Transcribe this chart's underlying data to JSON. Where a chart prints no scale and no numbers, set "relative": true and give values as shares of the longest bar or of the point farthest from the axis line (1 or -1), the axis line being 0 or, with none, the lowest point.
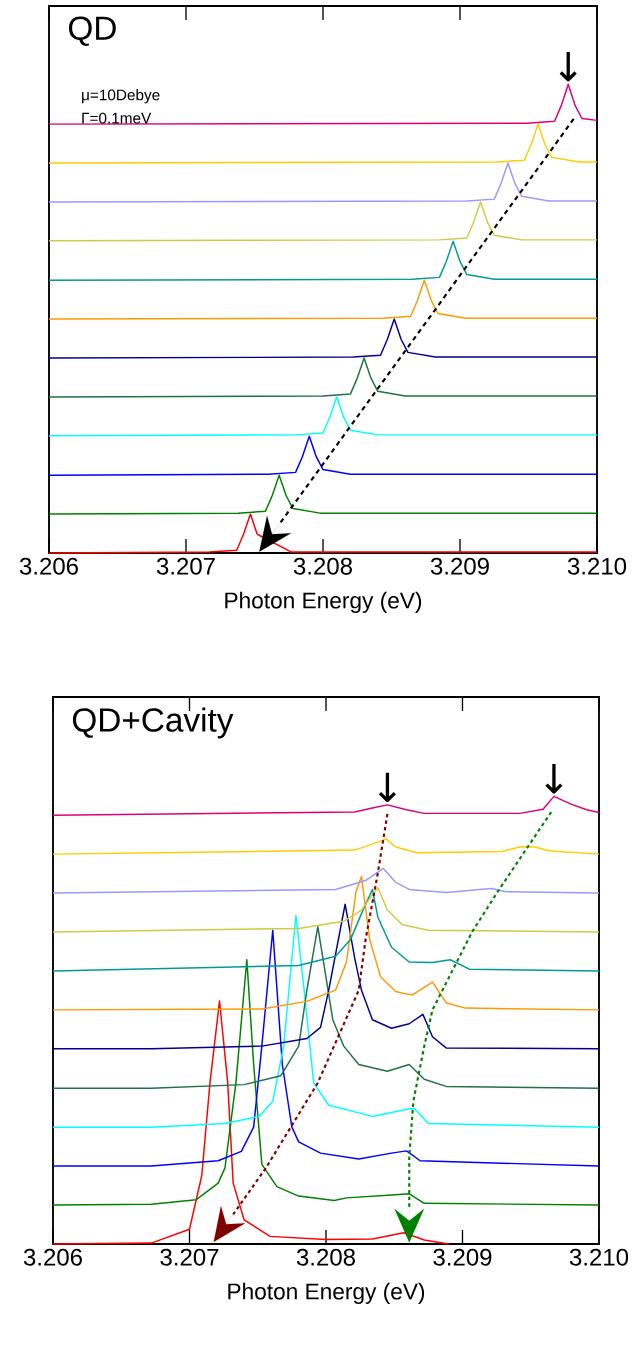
{
  "chart_data": [
    {
      "type": "line",
      "title": "QD",
      "xlabel": "Photon Energy (eV)",
      "relative": true,
      "xlim": [
        3.206,
        3.21
      ],
      "xticks": [
        3.206,
        3.207,
        3.208,
        3.209,
        {
          "value": 3.21,
          "label": "3.210"
        }
      ],
      "annotations": [
        "μ=10Debye",
        "Γ=0.1meV",
        {
          "text": "↓",
          "x": 3.20979,
          "y": 1
        }
      ],
      "series": [
        {
          "color": "#ff0000",
          "x": [
            3.206,
            3.20717,
            3.20737,
            3.20742,
            3.20747,
            3.20752,
            3.20757,
            3.20777,
            3.21
          ],
          "values": [
            0,
            0.002,
            0.006,
            0.04,
            0.083,
            0.04,
            null,
            0.002,
            0.002
          ]
        },
        {
          "color": "#008000",
          "x": [
            3.206,
            3.20738,
            3.20758,
            3.20763,
            3.20768,
            3.20773,
            3.20778,
            3.20798,
            3.21
          ],
          "values": [
            0.083,
            0.085,
            0.089,
            0.123,
            0.166,
            0.123,
            0.095,
            0.085,
            0.085
          ]
        },
        {
          "color": "#0000ff",
          "x": [
            3.206,
            3.2076,
            3.2078,
            3.20785,
            3.2079,
            3.20795,
            3.208,
            3.2082,
            3.21
          ],
          "values": [
            0.166,
            0.168,
            0.172,
            0.206,
            0.249,
            0.206,
            0.178,
            0.168,
            0.168
          ]
        },
        {
          "color": "#00ffff",
          "x": [
            3.206,
            3.2078,
            3.208,
            3.20805,
            3.2081,
            3.20815,
            3.2082,
            3.2084,
            3.21
          ],
          "values": [
            0.25,
            0.252,
            0.256,
            0.29,
            0.333,
            0.29,
            0.262,
            0.252,
            0.252
          ]
        },
        {
          "color": "#207048",
          "x": [
            3.206,
            3.208,
            3.2082,
            3.20825,
            3.2083,
            3.20835,
            3.2084,
            3.2086,
            3.21
          ],
          "values": [
            0.333,
            0.335,
            0.339,
            0.373,
            0.416,
            0.373,
            0.345,
            0.335,
            0.335
          ]
        },
        {
          "color": "#000090",
          "x": [
            3.206,
            3.20822,
            3.20842,
            3.20847,
            3.20852,
            3.20857,
            3.20862,
            3.20882,
            3.21
          ],
          "values": [
            0.416,
            0.418,
            0.422,
            0.456,
            0.499,
            0.456,
            0.428,
            0.418,
            0.418
          ]
        },
        {
          "color": "#ff9900",
          "x": [
            3.206,
            3.20844,
            3.20864,
            3.20869,
            3.20874,
            3.20879,
            3.20884,
            3.20904,
            3.21
          ],
          "values": [
            0.499,
            0.501,
            0.505,
            0.539,
            0.582,
            0.539,
            0.511,
            0.501,
            0.501
          ]
        },
        {
          "color": "#009999",
          "x": [
            3.206,
            3.20865,
            3.20885,
            3.2089,
            3.20895,
            3.209,
            3.20905,
            3.20925,
            3.21
          ],
          "values": [
            0.582,
            0.584,
            0.588,
            0.622,
            0.665,
            0.622,
            0.594,
            0.584,
            0.584
          ]
        },
        {
          "color": "#cccc44",
          "x": [
            3.206,
            3.20885,
            3.20905,
            3.2091,
            3.20915,
            3.2092,
            3.20925,
            3.20945,
            3.21
          ],
          "values": [
            0.666,
            0.668,
            0.672,
            0.706,
            0.749,
            0.706,
            0.678,
            0.668,
            0.668
          ]
        },
        {
          "color": "#9999ff",
          "x": [
            3.206,
            3.20905,
            3.20925,
            3.2093,
            3.20935,
            3.2094,
            3.20945,
            3.20965,
            3.21
          ],
          "values": [
            0.749,
            0.751,
            0.755,
            0.789,
            0.832,
            0.789,
            0.761,
            0.751,
            0.751
          ]
        },
        {
          "color": "#ffcc00",
          "x": [
            3.206,
            3.20927,
            3.20947,
            3.20952,
            3.20957,
            3.20962,
            3.20967,
            3.20987,
            3.21
          ],
          "values": [
            0.832,
            0.834,
            0.838,
            0.872,
            0.915,
            0.872,
            0.844,
            0.834,
            0.834
          ]
        },
        {
          "color": "#dd0077",
          "x": [
            3.206,
            3.20949,
            3.20969,
            3.20974,
            3.20979,
            3.20984,
            3.20989,
            3.21
          ],
          "values": [
            0.915,
            0.917,
            0.921,
            0.955,
            1,
            0.955,
            0.927,
            0.923
          ]
        },
        {
          "type": "line",
          "color": "#000000",
          "line_style": "dashed",
          "x": [
            3.20983,
            3.20768
          ],
          "values": [
            0.926,
            0.061
          ]
        }
      ]
    },
    {
      "type": "line",
      "title": "QD+Cavity",
      "xlabel": "Photon Energy (eV)",
      "relative": true,
      "xlim": [
        3.206,
        3.21
      ],
      "xticks": [
        3.206,
        3.207,
        3.208,
        3.209,
        {
          "value": 3.21,
          "label": "3.210"
        }
      ],
      "annotations": [
        {
          "text": "↓",
          "x": 3.20845,
          "y": 0.981
        },
        {
          "text": "↓",
          "x": 3.20967,
          "y": 1
        }
      ],
      "series": [
        {
          "color": "#ff0000",
          "x": [
            3.206,
            3.20672,
            3.207,
            3.20709,
            3.20715,
            3.20722,
            3.20728,
            3.20732,
            3.2074,
            3.20759,
            3.208,
            3.20834,
            3.20857,
            3.20872,
            3.2089
          ],
          "values": [
            0,
            0.002,
            0.033,
            0.153,
            0.36,
            0.543,
            0.36,
            0.136,
            0.054,
            0.017,
            0.01,
            0.011,
            0.025,
            0.009,
            0
          ]
        },
        {
          "color": "#008000",
          "x": [
            3.206,
            3.20672,
            3.20705,
            3.20721,
            3.20726,
            3.20734,
            3.20742,
            3.20747,
            3.20753,
            3.20764,
            3.2078,
            3.20806,
            3.20815,
            3.20851,
            3.20861,
            3.20872,
            3.21
          ],
          "values": [
            0.087,
            0.089,
            0.099,
            0.136,
            0.17,
            0.36,
            0.635,
            0.401,
            0.178,
            0.128,
            0.107,
            0.097,
            0.103,
            0.11,
            0.112,
            0.091,
            0.087
          ]
        },
        {
          "color": "#0000ff",
          "x": [
            3.206,
            3.20672,
            3.20721,
            3.20738,
            3.20747,
            3.20753,
            3.20761,
            3.20768,
            3.20775,
            3.2078,
            3.20796,
            3.20824,
            3.20848,
            3.20859,
            3.20869,
            3.21
          ],
          "values": [
            0.174,
            0.174,
            0.186,
            0.207,
            0.261,
            0.442,
            0.701,
            0.401,
            0.261,
            0.228,
            0.203,
            0.19,
            0.203,
            0.208,
            0.186,
            0.174
          ]
        },
        {
          "color": "#00ffff",
          "x": [
            3.206,
            3.20672,
            3.20726,
            3.20751,
            3.20761,
            3.20769,
            3.20778,
            3.20784,
            3.20791,
            3.20802,
            3.20834,
            3.20861,
            3.20865,
            3.20875,
            3.21
          ],
          "values": [
            0.261,
            0.261,
            0.269,
            0.285,
            0.319,
            0.442,
            0.734,
            0.567,
            0.36,
            0.31,
            0.285,
            0.302,
            0.302,
            0.269,
            0.261
          ]
        },
        {
          "color": "#207048",
          "x": [
            3.206,
            3.20672,
            3.2074,
            3.20767,
            3.2078,
            3.20786,
            3.20794,
            3.20805,
            3.20813,
            3.20824,
            3.20845,
            3.20861,
            3.20872,
            3.20888,
            3.21
          ],
          "values": [
            0.348,
            0.348,
            0.356,
            0.376,
            0.442,
            0.567,
            0.709,
            0.501,
            0.442,
            0.401,
            0.386,
            0.401,
            0.368,
            0.352,
            0.348
          ]
        },
        {
          "color": "#000090",
          "x": [
            3.206,
            3.20672,
            3.20753,
            3.20786,
            3.20796,
            3.20802,
            3.20814,
            3.20821,
            3.20826,
            3.20834,
            3.20848,
            3.20861,
            3.20871,
            3.20878,
            3.20888,
            3.21
          ],
          "values": [
            0.436,
            0.436,
            0.442,
            0.459,
            0.484,
            0.567,
            0.759,
            0.639,
            0.567,
            0.501,
            0.482,
            0.492,
            0.513,
            0.463,
            0.438,
            0.436
          ]
        },
        {
          "color": "#ff9900",
          "x": [
            3.206,
            3.20753,
            3.20786,
            3.20807,
            3.20815,
            3.20822,
            3.20826,
            3.20832,
            3.2084,
            3.20851,
            3.20863,
            3.20878,
            3.20888,
            3.20902,
            3.21
          ],
          "values": [
            0.523,
            0.525,
            0.542,
            0.567,
            0.63,
            0.788,
            0.821,
            0.68,
            0.597,
            0.564,
            0.556,
            0.585,
            0.539,
            0.527,
            0.523
          ]
        },
        {
          "color": "#009999",
          "x": [
            3.206,
            3.2078,
            3.20807,
            3.20818,
            3.20826,
            3.20834,
            3.20838,
            3.20848,
            3.20861,
            3.20878,
            3.20891,
            3.20905,
            3.21
          ],
          "values": [
            0.61,
            0.622,
            0.643,
            0.68,
            0.738,
            0.792,
            0.73,
            0.663,
            0.63,
            0.629,
            0.635,
            0.614,
            0.61
          ]
        },
        {
          "color": "#cccc44",
          "x": [
            3.206,
            3.2078,
            3.20813,
            3.20826,
            3.20838,
            3.20845,
            3.20856,
            3.20875,
            3.21
          ],
          "values": [
            0.697,
            0.705,
            0.721,
            0.746,
            0.796,
            0.746,
            0.713,
            0.701,
            0.697
          ]
        },
        {
          "color": "#9999ff",
          "x": [
            3.206,
            3.20807,
            3.20829,
            3.20842,
            3.20851,
            3.20861,
            3.20888,
            3.20921,
            3.20932,
            3.21
          ],
          "values": [
            0.784,
            0.792,
            0.812,
            0.839,
            0.808,
            0.792,
            0.785,
            0.794,
            0.787,
            0.784
          ]
        },
        {
          "color": "#ffcc00",
          "x": [
            3.206,
            3.20821,
            3.20832,
            3.20844,
            3.20851,
            3.20867,
            3.20929,
            3.20942,
            3.20953,
            3.20964,
            3.21
          ],
          "values": [
            0.871,
            0.88,
            0.891,
            0.905,
            0.887,
            0.874,
            0.877,
            0.887,
            0.887,
            0.878,
            0.871
          ]
        },
        {
          "color": "#dd0077",
          "x": [
            3.206,
            3.20821,
            3.20834,
            3.20845,
            3.20859,
            3.20872,
            3.20942,
            3.20959,
            3.20967,
            3.2098,
            3.20991,
            3.21
          ],
          "values": [
            0.958,
            0.965,
            0.974,
            0.981,
            0.97,
            0.962,
            0.962,
            0.971,
            1,
            0.982,
            0.97,
            0.964
          ]
        },
        {
          "type": "line",
          "color": "#800000",
          "line_style": "dotted",
          "x": [
            3.20845,
            3.20838,
            3.20829,
            3.20824,
            3.20794,
            3.20756,
            3.20732
          ],
          "values": [
            0.961,
            0.829,
            0.68,
            0.567,
            0.36,
            0.17,
            0.066
          ]
        },
        {
          "type": "line",
          "color": "#008000",
          "line_style": "dotted",
          "x": [
            3.20965,
            3.20926,
            3.20907,
            3.20878,
            3.20872,
            3.20864,
            3.20861,
            3.20861
          ],
          "values": [
            0.965,
            0.788,
            0.697,
            0.523,
            0.442,
            0.319,
            0.194,
            0.079
          ]
        }
      ]
    }
  ]
}
